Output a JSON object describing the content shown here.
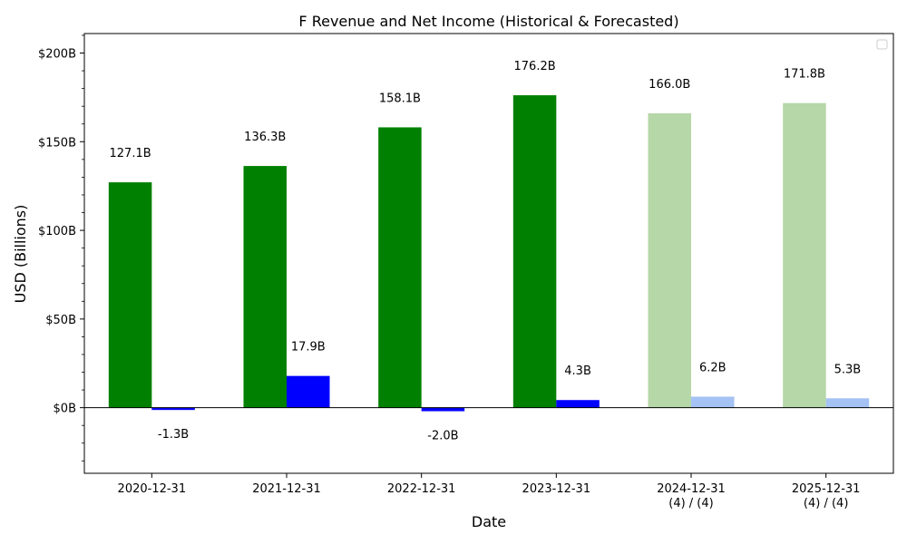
{
  "chart_data": {
    "type": "bar",
    "title": "F Revenue and Net Income (Historical & Forecasted)",
    "xlabel": "Date",
    "ylabel": "USD (Billions)",
    "ylim": [
      -37,
      211
    ],
    "y_ticks": [
      0,
      50,
      100,
      150,
      200
    ],
    "y_tick_labels": [
      "$0B",
      "$50B",
      "$100B",
      "$150B",
      "$200B"
    ],
    "categories": [
      [
        "2020-12-31"
      ],
      [
        "2021-12-31"
      ],
      [
        "2022-12-31"
      ],
      [
        "2023-12-31"
      ],
      [
        "2024-12-31",
        "(4) / (4)"
      ],
      [
        "2025-12-31",
        "(4) / (4)"
      ]
    ],
    "series": [
      {
        "values": [
          127.1,
          136.3,
          158.1,
          176.2,
          166.0,
          171.8
        ],
        "labels": [
          "127.1B",
          "136.3B",
          "158.1B",
          "176.2B",
          "166.0B",
          "171.8B"
        ],
        "colors": [
          "#008000",
          "#008000",
          "#008000",
          "#008000",
          "#b6d7a8",
          "#b6d7a8"
        ]
      },
      {
        "values": [
          -1.3,
          17.9,
          -2.0,
          4.3,
          6.2,
          5.3
        ],
        "labels": [
          "-1.3B",
          "17.9B",
          "-2.0B",
          "4.3B",
          "6.2B",
          "5.3B"
        ],
        "colors": [
          "#0000ff",
          "#0000ff",
          "#0000ff",
          "#0000ff",
          "#a4c2f4",
          "#a4c2f4"
        ]
      }
    ],
    "forecast_start_index": 4,
    "zero_line": true,
    "grid": false,
    "legend": "top-right"
  }
}
